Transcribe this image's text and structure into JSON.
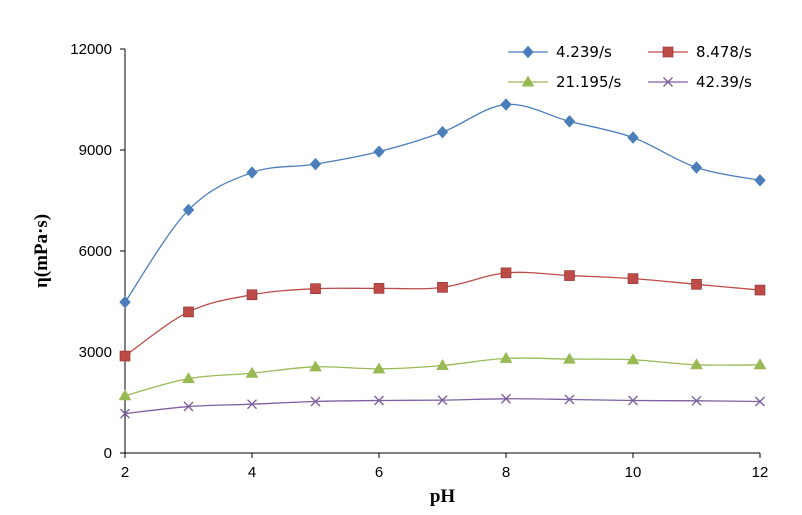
{
  "chart_data": {
    "type": "line",
    "title": "",
    "xlabel": "pH",
    "ylabel": "η(mPa·s)",
    "xlim": [
      2,
      12
    ],
    "ylim": [
      0,
      12000
    ],
    "x_ticks": [
      "2",
      "4",
      "6",
      "8",
      "10",
      "12"
    ],
    "y_ticks": [
      "0",
      "3000",
      "6000",
      "9000",
      "12000"
    ],
    "x": [
      2,
      3,
      4,
      5,
      6,
      7,
      8,
      9,
      10,
      11,
      12
    ],
    "legend_position": "top-right",
    "series": [
      {
        "name": "4.239/s",
        "color": "#4A7EBB",
        "marker": "diamond",
        "values": [
          4480,
          7220,
          8330,
          8580,
          8950,
          9530,
          10350,
          9850,
          9370,
          8480,
          8100
        ]
      },
      {
        "name": "8.478/s",
        "color": "#BE4B48",
        "marker": "square",
        "values": [
          2880,
          4190,
          4700,
          4880,
          4890,
          4920,
          5350,
          5270,
          5180,
          5010,
          4840
        ]
      },
      {
        "name": "21.195/s",
        "color": "#98B954",
        "marker": "triangle",
        "values": [
          1700,
          2210,
          2370,
          2560,
          2500,
          2600,
          2810,
          2790,
          2770,
          2620,
          2620
        ]
      },
      {
        "name": "42.39/s",
        "color": "#7D60A0",
        "marker": "x",
        "values": [
          1170,
          1380,
          1450,
          1530,
          1560,
          1570,
          1610,
          1590,
          1560,
          1550,
          1530
        ]
      }
    ]
  }
}
